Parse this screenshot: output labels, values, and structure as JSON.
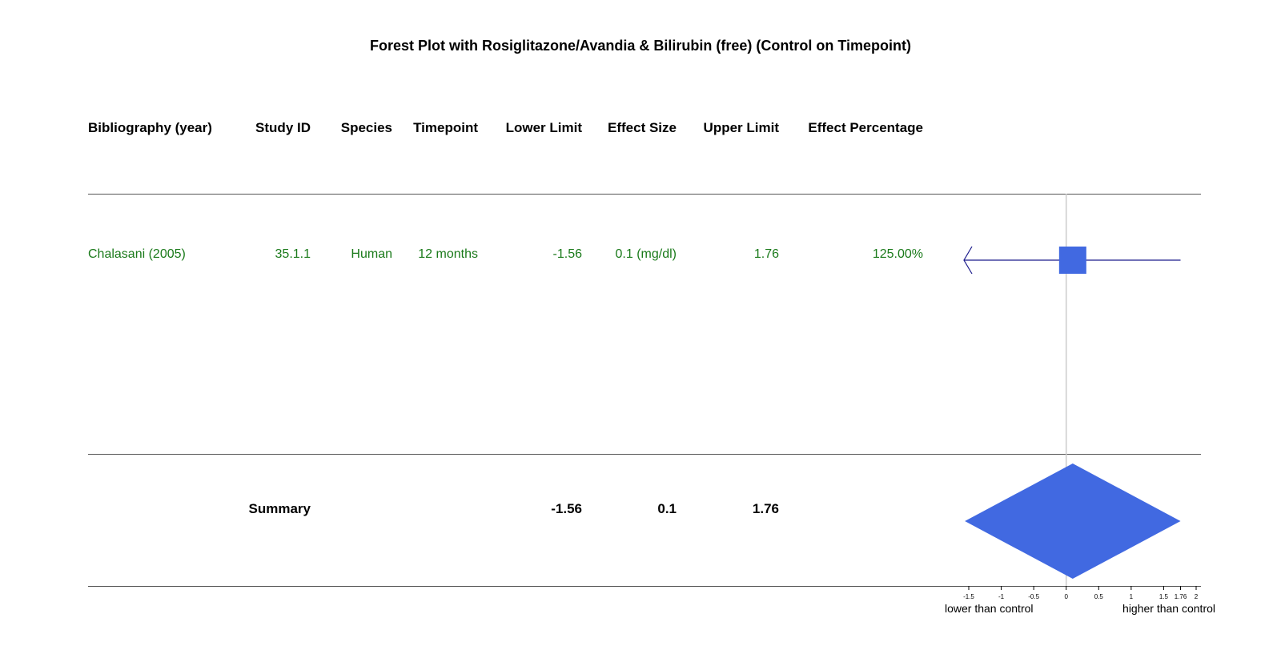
{
  "chart_data": {
    "type": "forest",
    "title": "Forest Plot with Rosiglitazone/Avandia & Bilirubin (free) (Control on Timepoint)",
    "columns": [
      "Bibliography (year)",
      "Study ID",
      "Species",
      "Timepoint",
      "Lower Limit",
      "Effect Size",
      "Upper Limit",
      "Effect Percentage"
    ],
    "studies": [
      {
        "bibliography": "Chalasani (2005)",
        "study_id": "35.1.1",
        "species": "Human",
        "timepoint": "12 months",
        "lower_limit_label": "-1.56",
        "effect_size_label": "0.1 (mg/dl)",
        "upper_limit_label": "1.76",
        "effect_percentage": "125.00%",
        "lower": -1.56,
        "effect": 0.1,
        "upper": 1.76,
        "lower_arrow": true
      }
    ],
    "summary": {
      "label": "Summary",
      "lower_label": "-1.56",
      "effect_label": "0.1",
      "upper_label": "1.76",
      "lower": -1.56,
      "effect": 0.1,
      "upper": 1.76
    },
    "x_axis": {
      "ticks": [
        -1.5,
        -1,
        -0.5,
        0,
        0.5,
        1,
        1.5,
        1.76,
        2
      ],
      "tick_labels": [
        "-1.5",
        "-1",
        "-0.5",
        "0",
        "0.5",
        "1",
        "1.5",
        "1.76",
        "2"
      ],
      "range": [
        -1.5,
        2
      ],
      "left_label": "lower than control",
      "right_label": "higher than control"
    },
    "colors": {
      "text_study": "#1a7a1a",
      "marker": "#4169e1",
      "ci_line": "#1c1c8c",
      "ref_line": "#cccccc",
      "axis": "#000000"
    }
  }
}
